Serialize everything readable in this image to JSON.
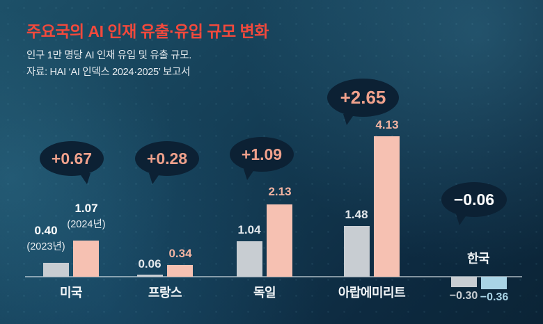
{
  "header": {
    "title": "주요국의 AI 인재 유출·유입 규모 변화",
    "subtitle": "인구 1만 명당 AI 인재 유입 및 유출 규모.",
    "source": "자료: HAI ‘AI 인덱스 2024·2025’ 보고서"
  },
  "chart_data": {
    "type": "bar",
    "title": "주요국의 AI 인재 유출·유입 규모 변화",
    "categories": [
      "미국",
      "프랑스",
      "독일",
      "아랍에미리트",
      "한국"
    ],
    "series": [
      {
        "name": "2023년",
        "values": [
          0.4,
          0.06,
          1.04,
          1.48,
          -0.3
        ]
      },
      {
        "name": "2024년",
        "values": [
          1.07,
          0.34,
          2.13,
          4.13,
          -0.36
        ]
      }
    ],
    "labels": {
      "y2023": [
        "0.40",
        "0.06",
        "1.04",
        "1.48",
        "−0.30"
      ],
      "y2024": [
        "1.07",
        "0.34",
        "2.13",
        "4.13",
        "−0.36"
      ],
      "change": [
        "+0.67",
        "+0.28",
        "+1.09",
        "+2.65",
        "−0.06"
      ],
      "year_note_2023": "(2023년)",
      "year_note_2024": "(2024년)"
    },
    "ylim": [
      -0.5,
      4.5
    ],
    "grid": false,
    "legend_position": "none",
    "colors": {
      "title": "#f3493c",
      "bar_2023": "#c8cdd2",
      "bar_2024": "#f6c1b2",
      "bar_2024_korea": "#a9d4e6",
      "bubble_bg": "#0c2134",
      "bubble_text_positive": "#f0a18c",
      "bubble_text_negative": "#ffffff",
      "label_2023": "#e3e8ec",
      "label_2024": "#f3b4a2",
      "axis": "#cfd6db"
    }
  }
}
